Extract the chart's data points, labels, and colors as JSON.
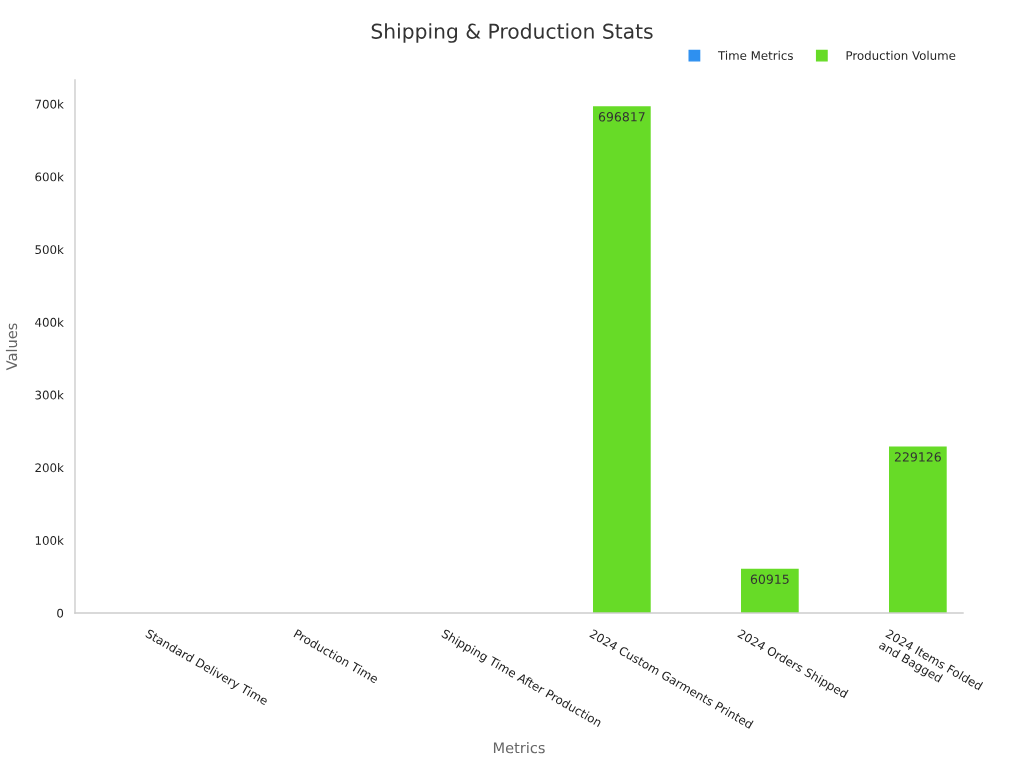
{
  "chart_data": {
    "type": "bar",
    "title": "Shipping & Production Stats",
    "xlabel": "Metrics",
    "ylabel": "Values",
    "categories": [
      "Standard Delivery Time",
      "Production Time",
      "Shipping Time After Production",
      "2024 Custom Garments Printed",
      "2024 Orders Shipped",
      "2024 Items Folded\nand Bagged"
    ],
    "series": [
      {
        "name": "Time Metrics",
        "color": "#2e90f0",
        "values": [
          null,
          null,
          null,
          null,
          null,
          null
        ]
      },
      {
        "name": "Production Volume",
        "color": "#67db27",
        "values": [
          null,
          null,
          null,
          696817,
          60915,
          229126
        ]
      }
    ],
    "ylim": [
      0,
      733000
    ],
    "yticks": [
      0,
      {
        "value": 100000,
        "label": "100k"
      },
      {
        "value": 200000,
        "label": "200k"
      },
      {
        "value": 300000,
        "label": "300k"
      },
      {
        "value": 400000,
        "label": "400k"
      },
      {
        "value": 500000,
        "label": "500k"
      },
      {
        "value": 600000,
        "label": "600k"
      },
      {
        "value": 700000,
        "label": "700k"
      }
    ],
    "data_labels": true,
    "legend": "top right"
  }
}
